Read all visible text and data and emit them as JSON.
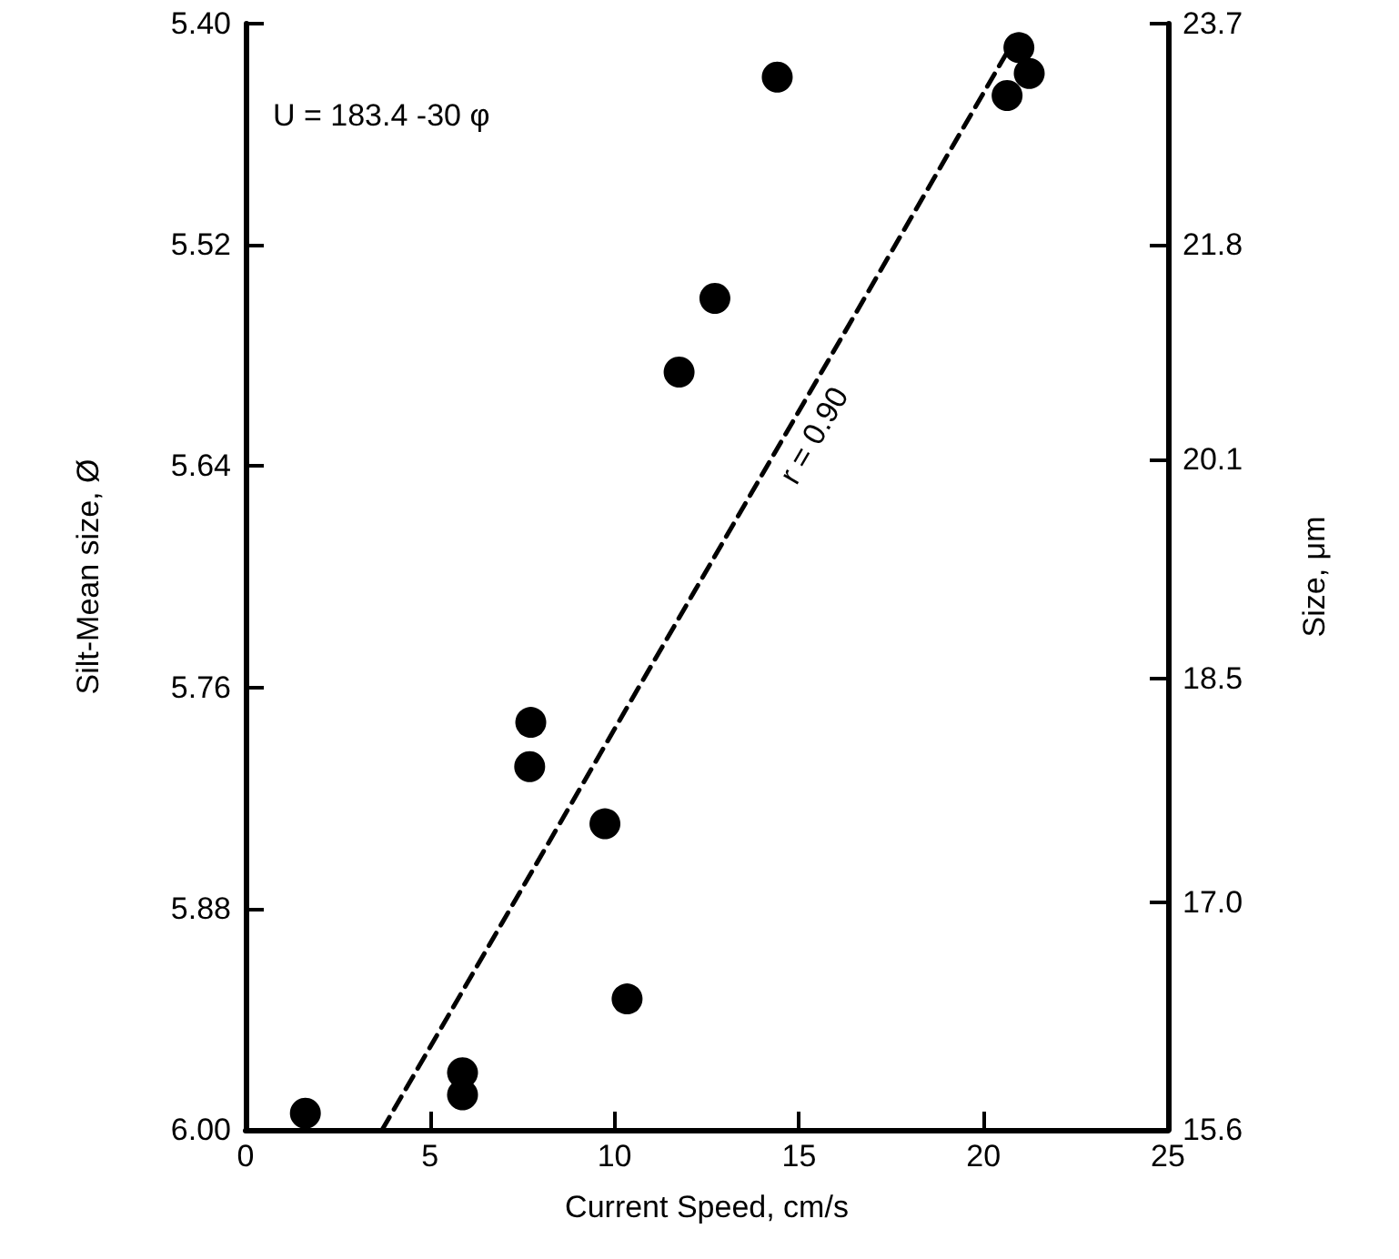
{
  "chart_data": {
    "type": "scatter",
    "xlabel": "Current Speed, cm/s",
    "ylabel": "Silt-Mean size, Ø",
    "y2label": "Size, μm",
    "annotations": [
      "U = 183.4 -30 φ"
    ],
    "xlim": [
      0,
      25
    ],
    "xticks": [
      0,
      5,
      10,
      15,
      20,
      25
    ],
    "ylim": [
      6.0,
      5.4
    ],
    "yticks": [
      {
        "value": 5.4,
        "label": "5.40"
      },
      {
        "value": 5.52,
        "label": "5.52"
      },
      {
        "value": 5.64,
        "label": "5.64"
      },
      {
        "value": 5.76,
        "label": "5.76"
      },
      {
        "value": 5.88,
        "label": "5.88"
      },
      {
        "value": 6.0,
        "label": "6.00"
      }
    ],
    "y2lim": [
      15.6,
      23.7
    ],
    "y2ticks": [
      15.6,
      {
        "value": 17.0,
        "label": "17.0"
      },
      18.5,
      20.1,
      21.8,
      23.7
    ],
    "log": "y2",
    "grid": false,
    "legend": false,
    "marker": "circle",
    "series": [
      {
        "color": "#000000",
        "x": [
          1.62,
          5.88,
          5.88,
          7.73,
          7.7,
          9.74,
          10.34,
          11.75,
          12.72,
          14.41,
          20.64,
          20.96,
          21.24
        ],
        "values": [
          5.991,
          5.969,
          5.981,
          5.779,
          5.803,
          5.834,
          5.929,
          5.589,
          5.549,
          5.429,
          5.439,
          5.413,
          5.427
        ]
      },
      {
        "type": "line",
        "name": "r = 0.90",
        "color": "#000000",
        "line_style": "dashed",
        "marker": "none",
        "x": [
          3.7,
          20.8
        ],
        "values": [
          6.0,
          5.41
        ]
      }
    ]
  }
}
